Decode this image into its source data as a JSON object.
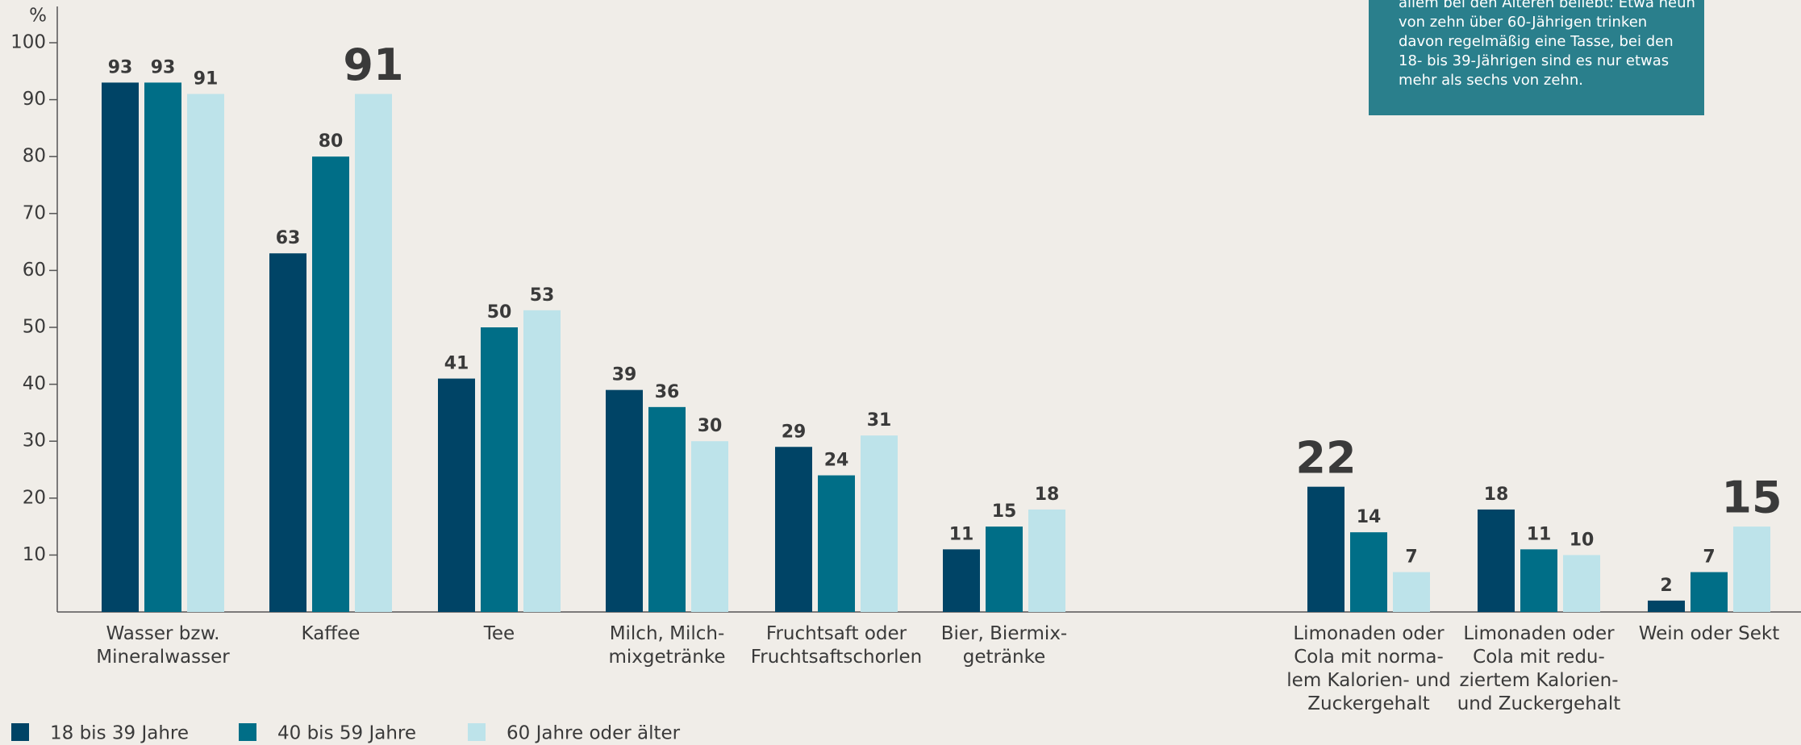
{
  "chart_data": {
    "type": "bar",
    "y_axis_label": "%",
    "categories": [
      "Wasser bzw.\nMineralwasser",
      "Kaffee",
      "Tee",
      "Milch, Milch-\nmixgetränke",
      "Fruchtsaft oder\nFruchtsaftschorlen",
      "Bier, Biermix-\ngetränke",
      "Limonaden oder\nCola mit norma-\nlem Kalorien- und\nZuckergehalt",
      "Limonaden oder\nCola mit redu-\nziertem Kalorien-\nund Zuckergehalt",
      "Wein oder Sekt"
    ],
    "series": [
      {
        "name": "18 bis 39 Jahre",
        "color": "#004466",
        "values": [
          93,
          63,
          41,
          39,
          29,
          11,
          22,
          18,
          2
        ]
      },
      {
        "name": "40 bis 59 Jahre",
        "color": "#006e87",
        "values": [
          93,
          80,
          50,
          36,
          24,
          15,
          14,
          11,
          7
        ]
      },
      {
        "name": "60 Jahre oder älter",
        "color": "#bde3ea",
        "values": [
          91,
          91,
          53,
          30,
          31,
          18,
          7,
          10,
          15
        ]
      }
    ],
    "ylim": [
      0,
      100
    ],
    "yticks": [
      10,
      20,
      30,
      40,
      50,
      60,
      70,
      80,
      90,
      100
    ],
    "annotation": [
      "allem bei den Älteren beliebt: Etwa neun",
      "von zehn über 60-Jährigen trinken",
      "davon regelmäßig eine Tasse, bei den",
      "18- bis 39-Jährigen sind es nur etwas",
      "mehr als sechs von zehn."
    ]
  }
}
